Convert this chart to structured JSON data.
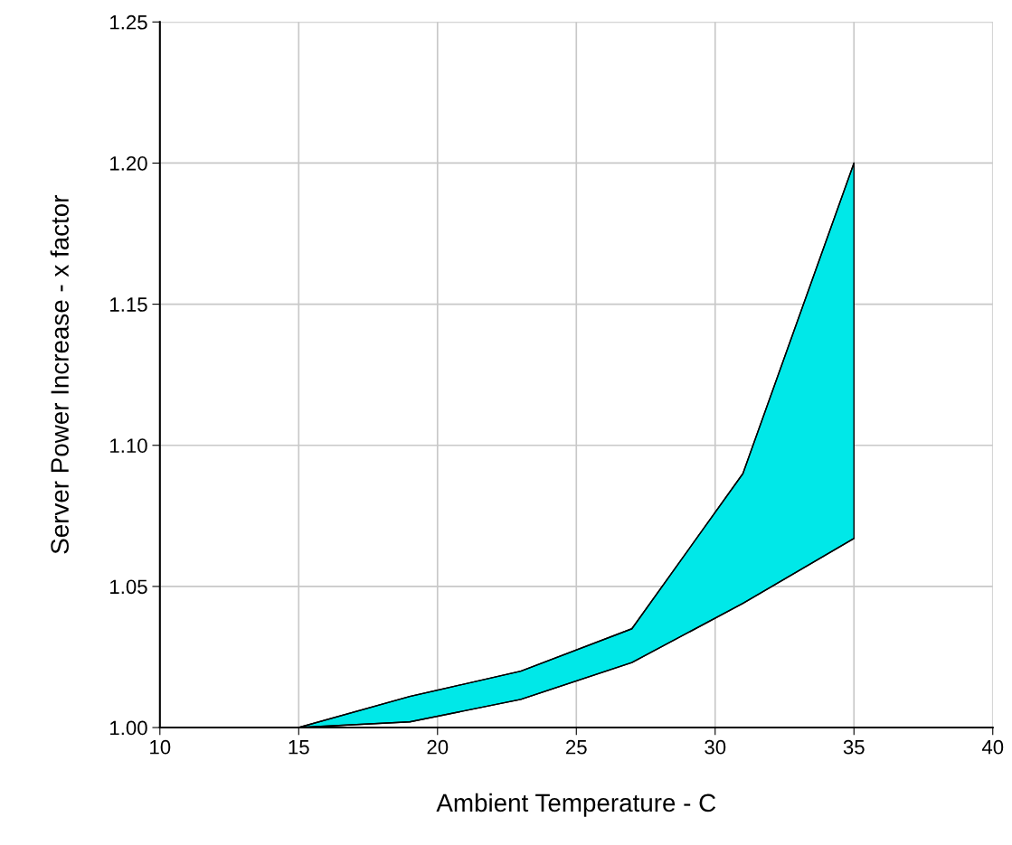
{
  "chart_data": {
    "type": "area",
    "xlabel": "Ambient Temperature - C",
    "ylabel": "Server Power Increase - x factor",
    "series": [
      {
        "type": "line",
        "color": "#000000",
        "x": [
          15,
          19,
          23,
          27,
          31,
          35
        ],
        "values": [
          1.0,
          1.002,
          1.01,
          1.023,
          1.044,
          1.067
        ]
      },
      {
        "color": "#00e8e8",
        "x": [
          15,
          19,
          23,
          27,
          31,
          35
        ],
        "values": [
          1.0,
          1.011,
          1.02,
          1.035,
          1.09,
          1.2
        ]
      }
    ],
    "xlim": [
      10,
      40
    ],
    "xticks": [
      10,
      15,
      20,
      25,
      30,
      35,
      40
    ],
    "ylim": [
      1.0,
      1.25
    ],
    "yticks": [
      {
        "value": 1.0,
        "label": "1.00"
      },
      {
        "value": 1.05,
        "label": "1.05"
      },
      {
        "value": 1.1,
        "label": "1.10"
      },
      {
        "value": 1.15,
        "label": "1.15"
      },
      {
        "value": 1.2,
        "label": "1.20"
      },
      {
        "value": 1.25,
        "label": "1.25"
      }
    ],
    "grid": true
  }
}
